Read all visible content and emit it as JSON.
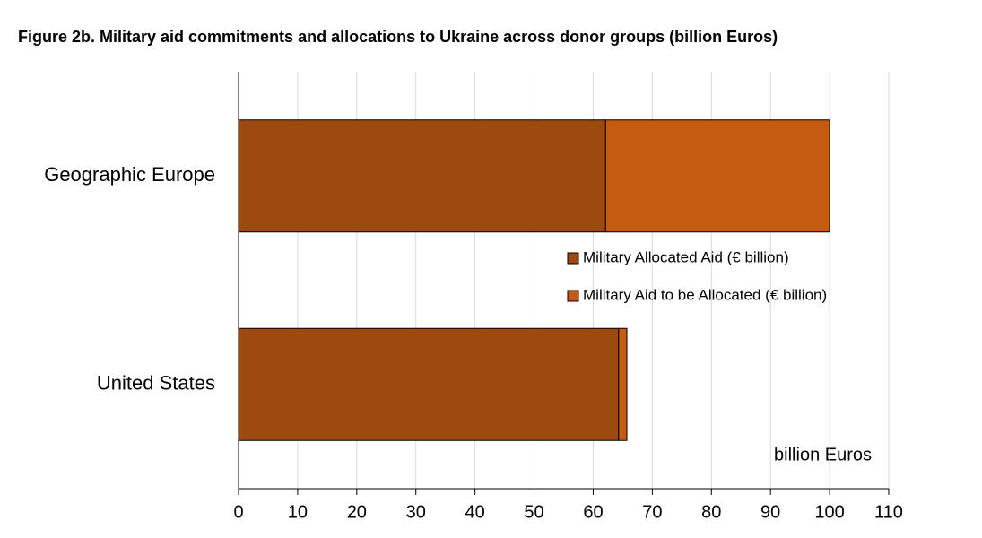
{
  "chart_data": {
    "type": "bar",
    "orientation": "horizontal",
    "stacked": true,
    "title": "Figure 2b. Military aid commitments and allocations to Ukraine across donor groups (billion Euros)",
    "x_label": "billion Euros",
    "categories": [
      "Geographic Europe",
      "United States"
    ],
    "series": [
      {
        "name": "Military Allocated Aid (€ billion)",
        "color": "#9c4a10",
        "values": [
          62.1,
          64.3
        ]
      },
      {
        "name": "Military Aid to be Allocated (€ billion)",
        "color": "#c55a11",
        "values": [
          37.9,
          1.4
        ]
      }
    ],
    "xlim": [
      0,
      110
    ],
    "xticks": [
      0,
      10,
      20,
      30,
      40,
      50,
      60,
      70,
      80,
      90,
      100,
      110
    ],
    "grid": true
  }
}
